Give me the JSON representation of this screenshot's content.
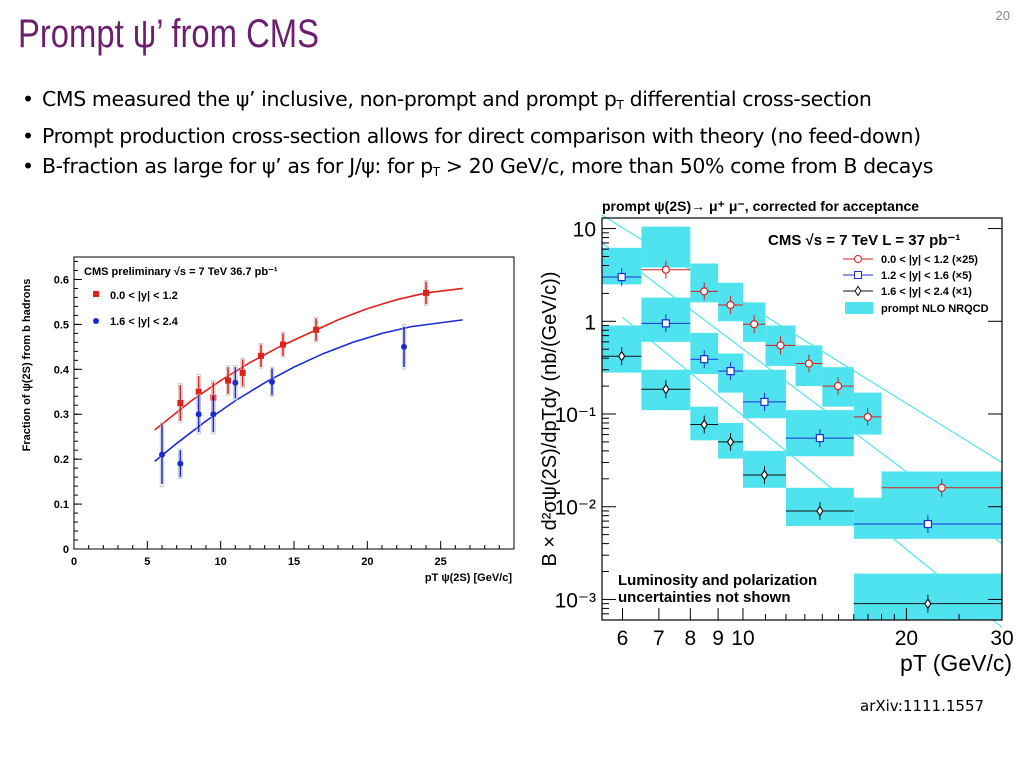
{
  "slide": {
    "title": "Prompt ψ’ from CMS",
    "number": "20",
    "citation": "arXiv:1111.1557",
    "bullets": [
      {
        "parts": [
          {
            "t": "CMS measured the ψ’ inclusive, non-prompt and prompt p"
          },
          {
            "sub": "T"
          },
          {
            "t": " differential cross-section"
          }
        ]
      },
      {
        "parts": [
          {
            "t": "Prompt production cross-section allows for direct comparison with theory (no feed-down)"
          }
        ]
      },
      {
        "parts": [
          {
            "t": "B-fraction as large for ψ’ as for J/ψ: for p"
          },
          {
            "sub": "T"
          },
          {
            "t": " > 20 GeV/c, more than 50% come from B decays"
          }
        ]
      }
    ]
  },
  "chart_data": [
    {
      "type": "scatter",
      "title": "CMS preliminary √s = 7 TeV 36.7 pb⁻¹",
      "xlabel": "pT ψ(2S) [GeV/c]",
      "ylabel": "Fraction of ψ(2S) from b hadrons",
      "xlim": [
        0,
        30
      ],
      "ylim": [
        0,
        0.65
      ],
      "x_ticks": [
        "0",
        "5",
        "10",
        "15",
        "20",
        "25"
      ],
      "y_ticks": [
        "0",
        "0.1",
        "0.2",
        "0.3",
        "0.4",
        "0.5",
        "0.6"
      ],
      "legend_position": "top-left",
      "series": [
        {
          "name": "0.0 < |y| < 1.2",
          "color": "#e0201b",
          "x": [
            7.25,
            8.5,
            9.5,
            10.5,
            11.5,
            12.75,
            14.25,
            16.5,
            24.0
          ],
          "y": [
            0.325,
            0.35,
            0.337,
            0.375,
            0.392,
            0.43,
            0.455,
            0.488,
            0.57
          ],
          "err": [
            0.04,
            0.035,
            0.035,
            0.03,
            0.03,
            0.025,
            0.025,
            0.025,
            0.025
          ],
          "fit": [
            [
              5.5,
              0.265
            ],
            [
              8,
              0.33
            ],
            [
              10,
              0.375
            ],
            [
              12,
              0.415
            ],
            [
              14,
              0.45
            ],
            [
              16,
              0.48
            ],
            [
              18,
              0.51
            ],
            [
              20,
              0.535
            ],
            [
              22,
              0.555
            ],
            [
              24,
              0.57
            ],
            [
              26.5,
              0.58
            ]
          ]
        },
        {
          "name": "1.6 < |y| < 2.4",
          "color": "#1a2ad6",
          "x": [
            6.0,
            7.25,
            8.5,
            9.5,
            11.0,
            13.5,
            22.5
          ],
          "y": [
            0.21,
            0.19,
            0.3,
            0.3,
            0.37,
            0.372,
            0.45
          ],
          "err": [
            0.065,
            0.03,
            0.04,
            0.04,
            0.035,
            0.03,
            0.045
          ],
          "fit": [
            [
              5.5,
              0.195
            ],
            [
              7,
              0.235
            ],
            [
              9,
              0.285
            ],
            [
              11,
              0.33
            ],
            [
              13,
              0.37
            ],
            [
              15,
              0.405
            ],
            [
              17,
              0.435
            ],
            [
              19,
              0.46
            ],
            [
              21,
              0.48
            ],
            [
              23,
              0.495
            ],
            [
              26.5,
              0.51
            ]
          ]
        }
      ]
    },
    {
      "type": "scatter",
      "title": "prompt ψ(2S)→ μ⁺ μ⁻, corrected for acceptance",
      "subtitle": "CMS √s = 7 TeV L = 37 pb⁻¹",
      "xlabel": "pT (GeV/c)",
      "ylabel": "B × d²σψ(2S)/dpTdy (nb/(GeV/c))",
      "x_scale": "log",
      "y_scale": "log",
      "xlim": [
        5.5,
        30
      ],
      "ylim": [
        0.0006,
        13
      ],
      "x_ticks": [
        "6",
        "7",
        "8",
        "9",
        "10",
        "20",
        "30"
      ],
      "y_ticks": [
        "10",
        "1",
        "10⁻¹",
        "10⁻²",
        "10⁻³"
      ],
      "annotation": "Luminosity and polarization uncertainties not shown",
      "legend_position": "top-right",
      "series": [
        {
          "name": "0.0 < |y| < 1.2 (×25)",
          "marker": "circle",
          "color": "#d42020",
          "xbins": [
            [
              6.5,
              8
            ],
            [
              8,
              9
            ],
            [
              9,
              10
            ],
            [
              10,
              11
            ],
            [
              11,
              12.5
            ],
            [
              12.5,
              14
            ],
            [
              14,
              16
            ],
            [
              16,
              18
            ],
            [
              18,
              30
            ]
          ],
          "y": [
            3.6,
            2.1,
            1.5,
            0.93,
            0.55,
            0.35,
            0.2,
            0.093,
            0.016
          ],
          "band": [
            [
              3.8,
              10.5
            ],
            [
              1.6,
              4.2
            ],
            [
              1.0,
              2.6
            ],
            [
              0.6,
              1.6
            ],
            [
              0.33,
              0.9
            ],
            [
              0.2,
              0.55
            ],
            [
              0.12,
              0.32
            ],
            [
              0.06,
              0.17
            ],
            [
              0.009,
              0.024
            ]
          ]
        },
        {
          "name": "1.2 < |y| < 1.6 (×5)",
          "marker": "square",
          "color": "#1c2fd4",
          "xbins": [
            [
              5.5,
              6.5
            ],
            [
              6.5,
              8
            ],
            [
              8,
              9
            ],
            [
              9,
              10
            ],
            [
              10,
              12
            ],
            [
              12,
              16
            ],
            [
              16,
              30
            ]
          ],
          "y": [
            3.0,
            0.95,
            0.39,
            0.29,
            0.135,
            0.055,
            0.0065
          ],
          "band": [
            [
              2.5,
              6.2
            ],
            [
              0.6,
              1.8
            ],
            [
              0.27,
              0.75
            ],
            [
              0.17,
              0.45
            ],
            [
              0.09,
              0.3
            ],
            [
              0.035,
              0.11
            ],
            [
              0.0045,
              0.0125
            ]
          ]
        },
        {
          "name": "1.6 < |y| < 2.4 (×1)",
          "marker": "diamond",
          "color": "#111111",
          "xbins": [
            [
              5.5,
              6.5
            ],
            [
              6.5,
              8
            ],
            [
              8,
              9
            ],
            [
              9,
              10
            ],
            [
              10,
              12
            ],
            [
              12,
              16
            ],
            [
              16,
              30
            ]
          ],
          "y": [
            0.42,
            0.185,
            0.077,
            0.05,
            0.022,
            0.009,
            0.0009
          ],
          "band": [
            [
              0.28,
              0.9
            ],
            [
              0.11,
              0.3
            ],
            [
              0.052,
              0.12
            ],
            [
              0.033,
              0.08
            ],
            [
              0.016,
              0.04
            ],
            [
              0.0062,
              0.016
            ],
            [
              0.0006,
              0.0019
            ]
          ]
        },
        {
          "name": "prompt NLO NRQCD",
          "color": "#4fe3f0"
        }
      ]
    }
  ]
}
